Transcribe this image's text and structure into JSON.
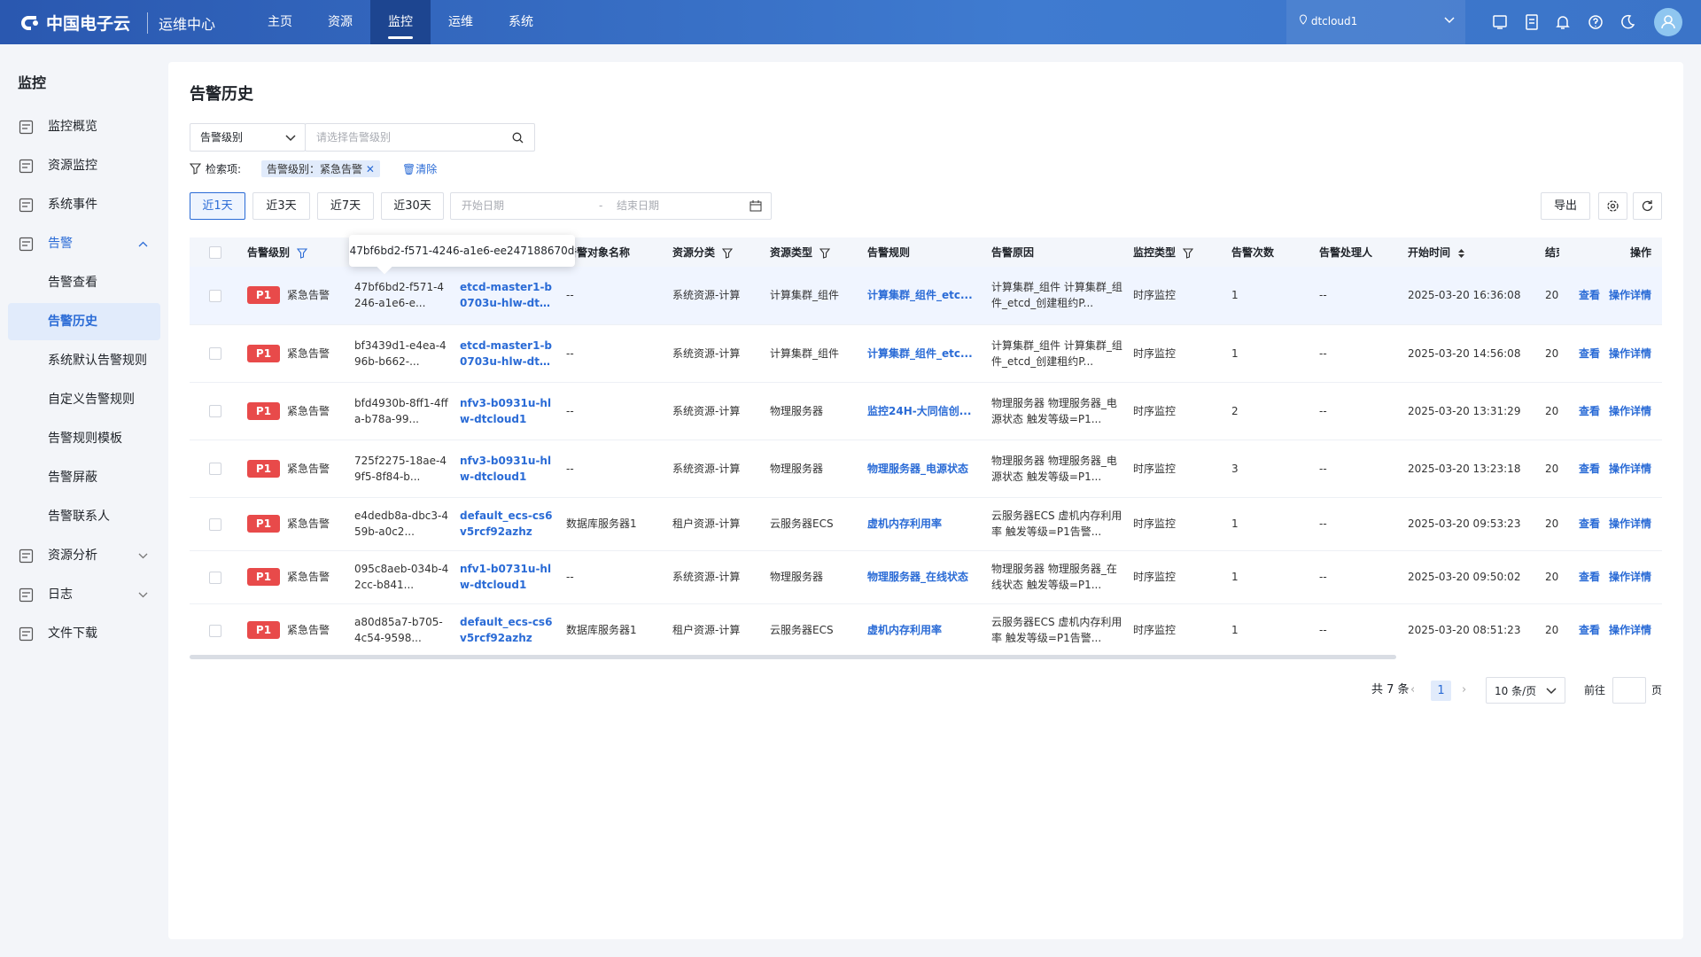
{
  "header": {
    "logo": "中国电子云",
    "app": "运维中心",
    "nav": [
      "主页",
      "资源",
      "监控",
      "运维",
      "系统"
    ],
    "region": "dtcloud1"
  },
  "sidebar": {
    "title": "监控",
    "items": [
      {
        "label": "监控概览"
      },
      {
        "label": "资源监控"
      },
      {
        "label": "系统事件"
      },
      {
        "label": "告警",
        "children": [
          "告警查看",
          "告警历史",
          "系统默认告警规则",
          "自定义告警规则",
          "告警规则模板",
          "告警屏蔽",
          "告警联系人"
        ]
      },
      {
        "label": "资源分析"
      },
      {
        "label": "日志"
      },
      {
        "label": "文件下载"
      }
    ]
  },
  "main": {
    "title": "告警历史",
    "filter": {
      "field": "告警级别",
      "placeholder": "请选择告警级别",
      "search_label": "检索项:",
      "chip": "告警级别：紧急告警",
      "clear": "清除"
    },
    "time_buttons": [
      "近1天",
      "近3天",
      "近7天",
      "近30天"
    ],
    "date": {
      "start": "开始日期",
      "separator": "-",
      "end": "结束日期"
    },
    "export": "导出"
  },
  "table": {
    "headers": {
      "level": "告警级别",
      "object_name": "告警对象名称",
      "category": "资源分类",
      "type": "资源类型",
      "rule": "告警规则",
      "reason": "告警原因",
      "monitor": "监控类型",
      "count": "告警次数",
      "handler": "告警处理人",
      "start": "开始时间",
      "end": "结束时间",
      "actions": "操作"
    },
    "tooltip": "47bf6bd2-f571-4246-a1e6-ee247188670d",
    "rows": [
      {
        "priority": "P1",
        "level": "紧急告警",
        "id": "47bf6bd2-f571-4246-a1e6-e...",
        "resource": "etcd-master1-b0703u-hlw-dtcl...",
        "object_name": "--",
        "category": "系统资源-计算",
        "type": "计算集群_组件",
        "rule": "计算集群_组件_etc...",
        "reason": "计算集群_组件 计算集群_组件_etcd_创建租约P...",
        "monitor": "时序监控",
        "count": 1,
        "handler": "--",
        "start": "2025-03-20 16:36:08",
        "end": "20",
        "view": "查看",
        "detail": "操作详情"
      },
      {
        "priority": "P1",
        "level": "紧急告警",
        "id": "bf3439d1-e4ea-496b-b662-...",
        "resource": "etcd-master1-b0703u-hlw-dtcl...",
        "object_name": "--",
        "category": "系统资源-计算",
        "type": "计算集群_组件",
        "rule": "计算集群_组件_etc...",
        "reason": "计算集群_组件 计算集群_组件_etcd_创建租约P...",
        "monitor": "时序监控",
        "count": 1,
        "handler": "--",
        "start": "2025-03-20 14:56:08",
        "end": "20",
        "view": "查看",
        "detail": "操作详情"
      },
      {
        "priority": "P1",
        "level": "紧急告警",
        "id": "bfd4930b-8ff1-4ffa-b78a-99...",
        "resource": "nfv3-b0931u-hlw-dtcloud1",
        "object_name": "--",
        "category": "系统资源-计算",
        "type": "物理服务器",
        "rule": "监控24H-大同信创...",
        "reason": "物理服务器 物理服务器_电源状态 触发等级=P1...",
        "monitor": "时序监控",
        "count": 2,
        "handler": "--",
        "start": "2025-03-20 13:31:29",
        "end": "20",
        "view": "查看",
        "detail": "操作详情"
      },
      {
        "priority": "P1",
        "level": "紧急告警",
        "id": "725f2275-18ae-49f5-8f84-b...",
        "resource": "nfv3-b0931u-hlw-dtcloud1",
        "object_name": "--",
        "category": "系统资源-计算",
        "type": "物理服务器",
        "rule": "物理服务器_电源状态",
        "reason": "物理服务器 物理服务器_电源状态 触发等级=P1...",
        "monitor": "时序监控",
        "count": 3,
        "handler": "--",
        "start": "2025-03-20 13:23:18",
        "end": "20",
        "view": "查看",
        "detail": "操作详情"
      },
      {
        "priority": "P1",
        "level": "紧急告警",
        "id": "e4dedb8a-dbc3-459b-a0c2...",
        "resource": "default_ecs-cs6v5rcf92azhz",
        "object_name": "数据库服务器1",
        "category": "租户资源-计算",
        "type": "云服务器ECS",
        "rule": "虚机内存利用率",
        "reason": "云服务器ECS 虚机内存利用率 触发等级=P1告警...",
        "monitor": "时序监控",
        "count": 1,
        "handler": "--",
        "start": "2025-03-20 09:53:23",
        "end": "20",
        "view": "查看",
        "detail": "操作详情"
      },
      {
        "priority": "P1",
        "level": "紧急告警",
        "id": "095c8aeb-034b-42cc-b841...",
        "resource": "nfv1-b0731u-hlw-dtcloud1",
        "object_name": "--",
        "category": "系统资源-计算",
        "type": "物理服务器",
        "rule": "物理服务器_在线状态",
        "reason": "物理服务器 物理服务器_在线状态 触发等级=P1...",
        "monitor": "时序监控",
        "count": 1,
        "handler": "--",
        "start": "2025-03-20 09:50:02",
        "end": "20",
        "view": "查看",
        "detail": "操作详情"
      },
      {
        "priority": "P1",
        "level": "紧急告警",
        "id": "a80d85a7-b705-4c54-9598...",
        "resource": "default_ecs-cs6v5rcf92azhz",
        "object_name": "数据库服务器1",
        "category": "租户资源-计算",
        "type": "云服务器ECS",
        "rule": "虚机内存利用率",
        "reason": "云服务器ECS 虚机内存利用率 触发等级=P1告警...",
        "monitor": "时序监控",
        "count": 1,
        "handler": "--",
        "start": "2025-03-20 08:51:23",
        "end": "20",
        "view": "查看",
        "detail": "操作详情"
      }
    ]
  },
  "pagination": {
    "total": "共 7 条",
    "page": "1",
    "size": "10 条/页",
    "goto": "前往",
    "unit": "页"
  }
}
